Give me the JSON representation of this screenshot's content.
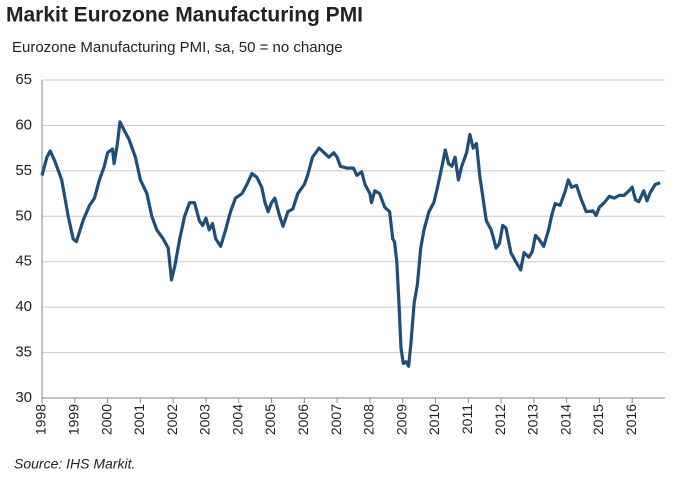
{
  "chart_data": {
    "type": "line",
    "title": "Markit Eurozone Manufacturing PMI",
    "subtitle": "Eurozone Manufacturing PMI, sa, 50 = no change",
    "source": "Source: IHS Markit.",
    "x": [
      1998.0,
      1998.15,
      1998.25,
      1998.4,
      1998.6,
      1998.8,
      1998.95,
      1999.05,
      1999.25,
      1999.45,
      1999.6,
      1999.75,
      1999.9,
      2000.0,
      2000.15,
      2000.2,
      2000.3,
      2000.38,
      2000.5,
      2000.65,
      2000.85,
      2001.0,
      2001.2,
      2001.35,
      2001.5,
      2001.7,
      2001.85,
      2001.95,
      2002.05,
      2002.2,
      2002.35,
      2002.5,
      2002.65,
      2002.8,
      2002.9,
      2003.0,
      2003.1,
      2003.2,
      2003.3,
      2003.45,
      2003.6,
      2003.75,
      2003.9,
      2004.1,
      2004.25,
      2004.4,
      2004.55,
      2004.7,
      2004.8,
      2004.9,
      2005.0,
      2005.1,
      2005.25,
      2005.35,
      2005.5,
      2005.65,
      2005.8,
      2006.0,
      2006.1,
      2006.25,
      2006.45,
      2006.6,
      2006.75,
      2006.9,
      2007.0,
      2007.1,
      2007.3,
      2007.5,
      2007.6,
      2007.75,
      2007.85,
      2008.0,
      2008.05,
      2008.15,
      2008.3,
      2008.45,
      2008.6,
      2008.7,
      2008.75,
      2008.82,
      2008.88,
      2008.95,
      2009.02,
      2009.1,
      2009.18,
      2009.25,
      2009.35,
      2009.45,
      2009.55,
      2009.65,
      2009.8,
      2009.95,
      2010.05,
      2010.2,
      2010.3,
      2010.4,
      2010.5,
      2010.6,
      2010.7,
      2010.8,
      2010.95,
      2011.05,
      2011.15,
      2011.25,
      2011.35,
      2011.45,
      2011.55,
      2011.7,
      2011.85,
      2011.95,
      2012.05,
      2012.15,
      2012.3,
      2012.45,
      2012.6,
      2012.7,
      2012.85,
      2012.95,
      2013.05,
      2013.15,
      2013.3,
      2013.45,
      2013.55,
      2013.65,
      2013.8,
      2013.95,
      2014.05,
      2014.15,
      2014.3,
      2014.45,
      2014.6,
      2014.8,
      2014.9,
      2015.0,
      2015.15,
      2015.3,
      2015.45,
      2015.6,
      2015.75,
      2015.9,
      2016.0,
      2016.1,
      2016.2,
      2016.35,
      2016.45,
      2016.55,
      2016.7,
      2016.85
    ],
    "series": [
      {
        "name": "Eurozone Manufacturing PMI",
        "color": "#1f4e79",
        "values": [
          54.5,
          56.5,
          57.2,
          56,
          54,
          50,
          47.5,
          47.2,
          49.5,
          51.2,
          52,
          54,
          55.5,
          57,
          57.4,
          55.8,
          58,
          60.4,
          59.5,
          58.5,
          56.5,
          54,
          52.5,
          50,
          48.5,
          47.5,
          46.5,
          43,
          44.5,
          47.5,
          50,
          51.5,
          51.5,
          49.5,
          49,
          49.8,
          48.5,
          49.2,
          47.5,
          46.7,
          48.5,
          50.5,
          52,
          52.5,
          53.5,
          54.7,
          54.3,
          53.2,
          51.5,
          50.5,
          51.5,
          52,
          50,
          48.9,
          50.5,
          50.8,
          52.5,
          53.5,
          54.5,
          56.5,
          57.5,
          57,
          56.5,
          57,
          56.5,
          55.5,
          55.3,
          55.3,
          54.5,
          54.9,
          53.5,
          52.5,
          51.5,
          52.8,
          52.5,
          51,
          50.5,
          47.5,
          47.2,
          45,
          41,
          35.5,
          33.8,
          34,
          33.5,
          36,
          40.5,
          42.5,
          46.5,
          48.5,
          50.5,
          51.5,
          53,
          55.5,
          57.3,
          55.8,
          55.5,
          56.5,
          54,
          55.5,
          57,
          59,
          57.5,
          58,
          54.5,
          52,
          49.5,
          48.5,
          46.5,
          47,
          49,
          48.7,
          46,
          45,
          44.1,
          46,
          45.5,
          46.1,
          47.9,
          47.5,
          46.7,
          48.5,
          50.2,
          51.4,
          51.2,
          52.7,
          54,
          53.2,
          53.4,
          51.8,
          50.5,
          50.6,
          50.1,
          51,
          51.5,
          52.2,
          52,
          52.3,
          52.3,
          52.8,
          53.2,
          51.8,
          51.6,
          52.8,
          51.7,
          52.6,
          53.5,
          53.7
        ]
      }
    ],
    "xlim": [
      1998,
      2017
    ],
    "xticks": [
      1998,
      1999,
      2000,
      2001,
      2002,
      2003,
      2004,
      2005,
      2006,
      2007,
      2008,
      2009,
      2010,
      2011,
      2012,
      2013,
      2014,
      2015,
      2016
    ],
    "ylim": [
      30,
      65
    ],
    "yticks": [
      30,
      35,
      40,
      45,
      50,
      55,
      60,
      65
    ],
    "grid": true
  }
}
